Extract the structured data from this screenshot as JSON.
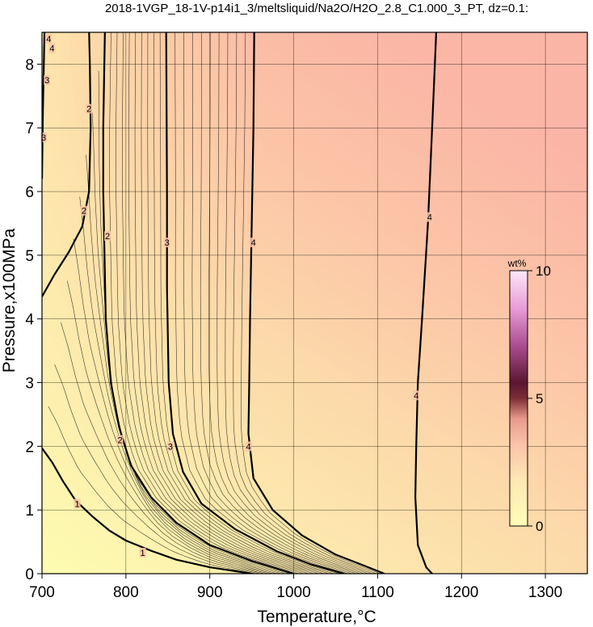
{
  "title": "2018-1VGP_18-1V-p14i1_3/meltsliquid/Na2O/H2O_2.8_C1.000_3_PT, dz=0.1:",
  "colors": {
    "frame": "#000000",
    "grid": "#000000",
    "high_fill": "#fbb5a6",
    "low_fill": "#fdfcb1"
  },
  "chart_data": {
    "type": "heatmap",
    "title": "2018-1VGP_18-1V-p14i1_3/meltsliquid/Na2O/H2O_2.8_C1.000_3_PT, dz=0.1:",
    "xlabel": "Temperature,°C",
    "ylabel": "Pressure,x100MPa",
    "xlim": [
      700,
      1350
    ],
    "ylim": [
      0,
      8.5
    ],
    "x_ticks": [
      700,
      800,
      900,
      1000,
      1100,
      1200,
      1300
    ],
    "y_ticks": [
      0,
      1,
      2,
      3,
      4,
      5,
      6,
      7,
      8
    ],
    "grid": true,
    "contour_interval": 0.1,
    "major_contours": [
      {
        "level": 1,
        "label": "1",
        "points": [
          [
            700,
            1.97
          ],
          [
            712,
            1.75
          ],
          [
            725,
            1.45
          ],
          [
            740,
            1.15
          ],
          [
            760,
            0.9
          ],
          [
            780,
            0.68
          ],
          [
            800,
            0.52
          ],
          [
            830,
            0.36
          ],
          [
            860,
            0.22
          ],
          [
            900,
            0.1
          ],
          [
            950,
            0.0
          ]
        ]
      },
      {
        "level": 2,
        "label": "2",
        "points": [
          [
            700,
            4.35
          ],
          [
            715,
            4.7
          ],
          [
            732,
            5.05
          ],
          [
            748,
            5.45
          ],
          [
            756,
            6.0
          ],
          [
            758,
            7.0
          ],
          [
            757,
            8.0
          ],
          [
            756,
            8.55
          ]
        ]
      },
      {
        "level": 2,
        "label": "2",
        "points": [
          [
            775,
            8.55
          ],
          [
            773,
            7.0
          ],
          [
            773,
            6.0
          ],
          [
            776,
            4.0
          ],
          [
            782,
            3.0
          ],
          [
            792,
            2.3
          ],
          [
            806,
            1.7
          ],
          [
            830,
            1.2
          ],
          [
            860,
            0.8
          ],
          [
            900,
            0.45
          ],
          [
            950,
            0.2
          ],
          [
            1000,
            0.0
          ]
        ]
      },
      {
        "level": 3,
        "label": "3",
        "points": [
          [
            703,
            8.55
          ],
          [
            701,
            7.2
          ],
          [
            700,
            6.2
          ]
        ]
      },
      {
        "level": 3,
        "label": "3",
        "points": [
          [
            848,
            8.55
          ],
          [
            849,
            6.0
          ],
          [
            849,
            4.5
          ],
          [
            851,
            3.0
          ],
          [
            856,
            2.2
          ],
          [
            868,
            1.6
          ],
          [
            890,
            1.1
          ],
          [
            930,
            0.7
          ],
          [
            980,
            0.35
          ],
          [
            1020,
            0.15
          ],
          [
            1060,
            0.0
          ]
        ]
      },
      {
        "level": 4,
        "label": "4",
        "points": [
          [
            953,
            8.55
          ],
          [
            952,
            7.0
          ],
          [
            950,
            5.5
          ],
          [
            948,
            4.0
          ],
          [
            947,
            3.0
          ],
          [
            946,
            2.2
          ],
          [
            952,
            1.5
          ],
          [
            975,
            1.0
          ],
          [
            1010,
            0.6
          ],
          [
            1050,
            0.3
          ],
          [
            1085,
            0.12
          ],
          [
            1108,
            0.0
          ]
        ]
      },
      {
        "level": 4,
        "label": "4",
        "points": [
          [
            1170,
            8.55
          ],
          [
            1165,
            7.0
          ],
          [
            1160,
            5.5
          ],
          [
            1153,
            4.0
          ],
          [
            1148,
            3.0
          ],
          [
            1146,
            2.0
          ],
          [
            1145,
            1.2
          ],
          [
            1148,
            0.45
          ],
          [
            1158,
            0.1
          ],
          [
            1165,
            0.0
          ]
        ]
      }
    ],
    "contour_labels": [
      {
        "label": "1",
        "x": 742,
        "y": 1.1
      },
      {
        "label": "1",
        "x": 820,
        "y": 0.33
      },
      {
        "label": "2",
        "x": 750,
        "y": 5.7
      },
      {
        "label": "2",
        "x": 756,
        "y": 7.3
      },
      {
        "label": "2",
        "x": 778,
        "y": 5.3
      },
      {
        "label": "2",
        "x": 793,
        "y": 2.1
      },
      {
        "label": "3",
        "x": 706,
        "y": 7.75
      },
      {
        "label": "3",
        "x": 702,
        "y": 6.85
      },
      {
        "label": "3",
        "x": 849,
        "y": 5.2
      },
      {
        "label": "3",
        "x": 853,
        "y": 2.0
      },
      {
        "label": "4",
        "x": 952,
        "y": 5.2
      },
      {
        "label": "4",
        "x": 946,
        "y": 2.0
      },
      {
        "label": "4",
        "x": 1162,
        "y": 5.6
      },
      {
        "label": "4",
        "x": 1146,
        "y": 2.8
      },
      {
        "label": "4",
        "x": 708,
        "y": 8.4
      },
      {
        "label": "4",
        "x": 712,
        "y": 8.25
      }
    ],
    "colorbar": {
      "unit": "wt%",
      "min": 0,
      "max": 10,
      "ticks": [
        0,
        5,
        10
      ],
      "colors": [
        "#fffdb8",
        "#fde8b3",
        "#fcc2a8",
        "#f2a596",
        "#c56870",
        "#7d2d35",
        "#5a1630",
        "#a74a8c",
        "#e99ad7",
        "#fde8f8"
      ]
    }
  }
}
